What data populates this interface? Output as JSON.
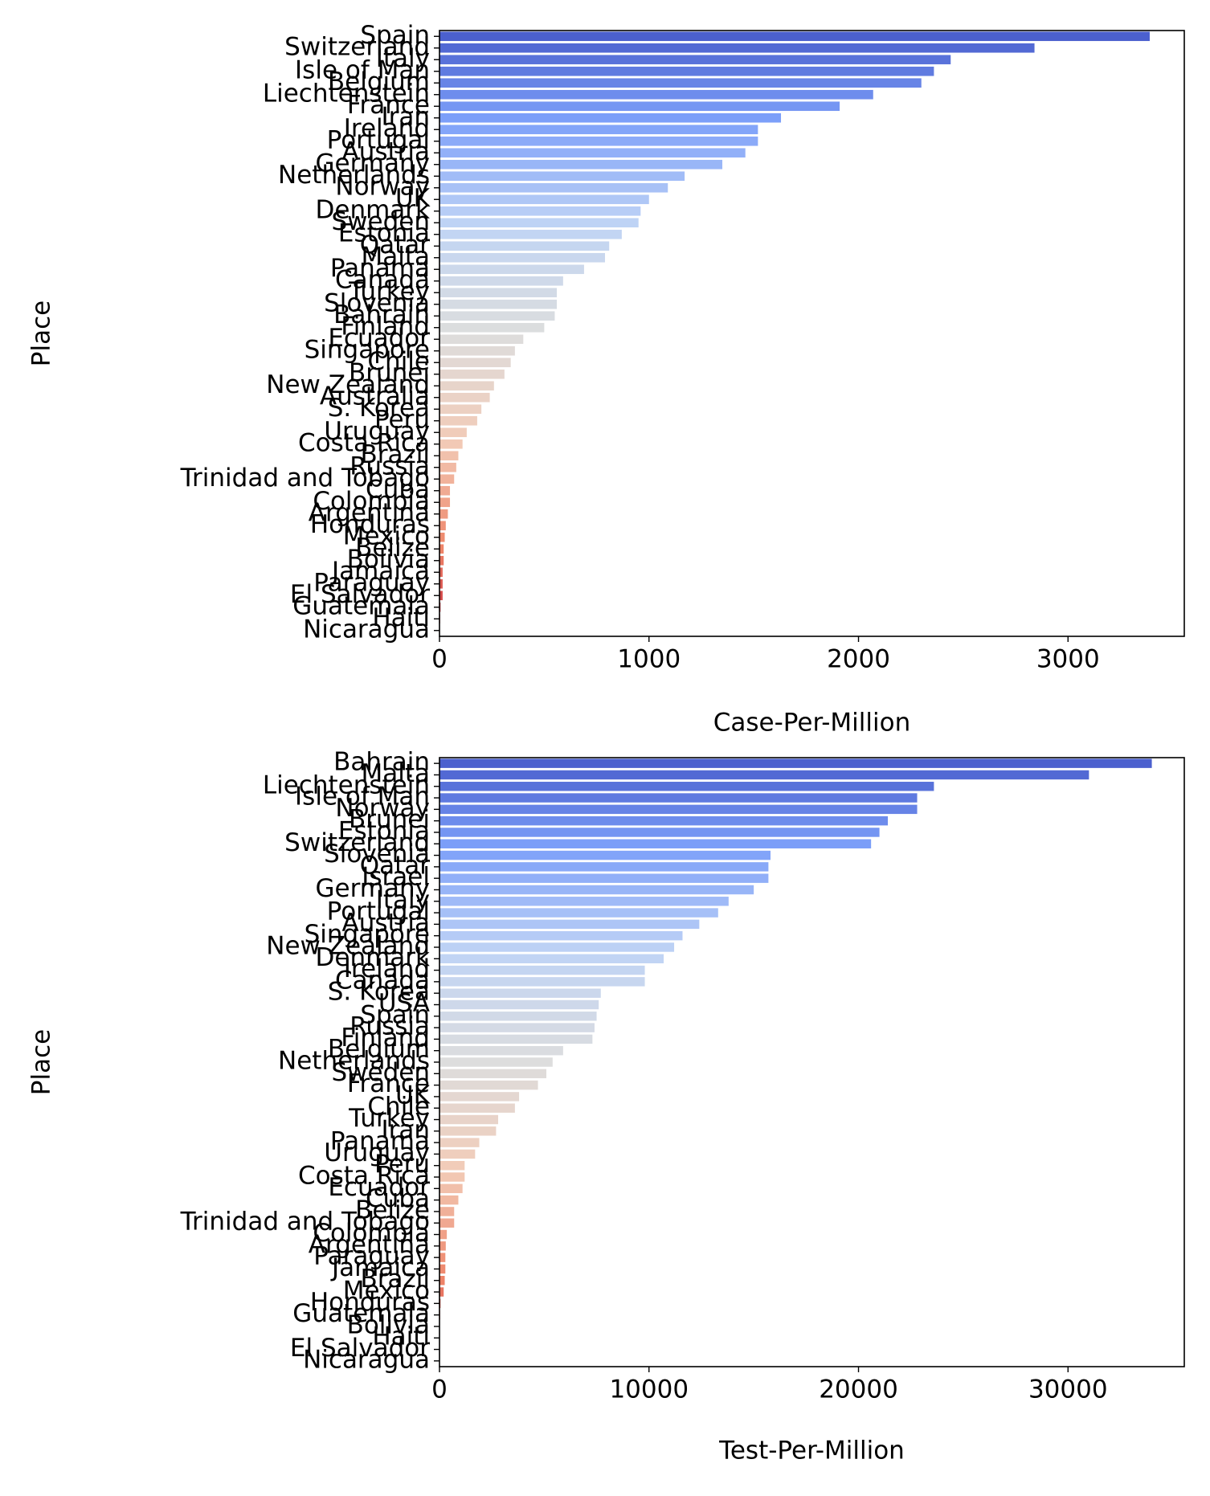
{
  "chart_data": [
    {
      "type": "barh",
      "xlabel": "Case-Per-Million",
      "ylabel": "Place",
      "palette": "coolwarm",
      "categories": [
        "Spain",
        "Switzerland",
        "Italy",
        "Isle of Man",
        "Belgium",
        "Liechtenstein",
        "France",
        "Iran",
        "Ireland",
        "Portugal",
        "Austria",
        "Germany",
        "Netherlands",
        "Norway",
        "UK",
        "Denmark",
        "Sweden",
        "Estonia",
        "Qatar",
        "Malta",
        "Panama",
        "Canada",
        "Turkey",
        "Slovenia",
        "Bahrain",
        "Finland",
        "Ecuador",
        "Singapore",
        "Chile",
        "Brunei",
        "New Zealand",
        "Australia",
        "S. Korea",
        "Peru",
        "Uruguay",
        "Costa Rica",
        "Brazil",
        "Russia",
        "Trinidad and Tobago",
        "Cuba",
        "Colombia",
        "Argentina",
        "Honduras",
        "Mexico",
        "Belize",
        "Bolivia",
        "Jamaica",
        "Paraguay",
        "El Salvador",
        "Guatemala",
        "Haiti",
        "Nicaragua"
      ],
      "values": [
        3390,
        2840,
        2440,
        2360,
        2300,
        2070,
        1910,
        1630,
        1520,
        1520,
        1460,
        1350,
        1170,
        1090,
        1000,
        960,
        950,
        870,
        810,
        790,
        690,
        590,
        560,
        560,
        550,
        500,
        400,
        360,
        340,
        310,
        260,
        240,
        200,
        180,
        130,
        110,
        90,
        80,
        70,
        50,
        50,
        40,
        30,
        25,
        20,
        20,
        15,
        15,
        15,
        5,
        3,
        2
      ],
      "xlim": [
        0,
        3555
      ],
      "xticks": [
        0,
        1000,
        2000,
        3000
      ]
    },
    {
      "type": "barh",
      "xlabel": "Test-Per-Million",
      "ylabel": "Place",
      "palette": "coolwarm",
      "categories": [
        "Bahrain",
        "Malta",
        "Liechtenstein",
        "Isle of Man",
        "Norway",
        "Brunei",
        "Estonia",
        "Switzerland",
        "Slovenia",
        "Qatar",
        "Israel",
        "Germany",
        "Italy",
        "Portugal",
        "Austria",
        "Singapore",
        "New Zealand",
        "Denmark",
        "Ireland",
        "Canada",
        "S. Korea",
        "USA",
        "Spain",
        "Russia",
        "Finland",
        "Belgium",
        "Netherlands",
        "Sweden",
        "France",
        "UK",
        "Chile",
        "Turkey",
        "Iran",
        "Panama",
        "Uruguay",
        "Peru",
        "Costa Rica",
        "Ecuador",
        "Cuba",
        "Belize",
        "Trinidad and Tobago",
        "Colombia",
        "Argentina",
        "Paraguay",
        "Jamaica",
        "Brazil",
        "Mexico",
        "Honduras",
        "Guatemala",
        "Bolivia",
        "Haiti",
        "El Salvador",
        "Nicaragua"
      ],
      "values": [
        34000,
        31000,
        23600,
        22800,
        22800,
        21400,
        21000,
        20600,
        15800,
        15700,
        15700,
        15000,
        13800,
        13300,
        12400,
        11600,
        11200,
        10700,
        9800,
        9800,
        7700,
        7600,
        7500,
        7400,
        7300,
        5900,
        5400,
        5100,
        4700,
        3800,
        3600,
        2800,
        2700,
        1900,
        1700,
        1200,
        1200,
        1100,
        900,
        700,
        700,
        350,
        300,
        280,
        280,
        250,
        200,
        50,
        30,
        20,
        10,
        5,
        2
      ],
      "xlim": [
        0,
        35550
      ],
      "xticks": [
        0,
        10000,
        20000,
        30000
      ]
    }
  ]
}
